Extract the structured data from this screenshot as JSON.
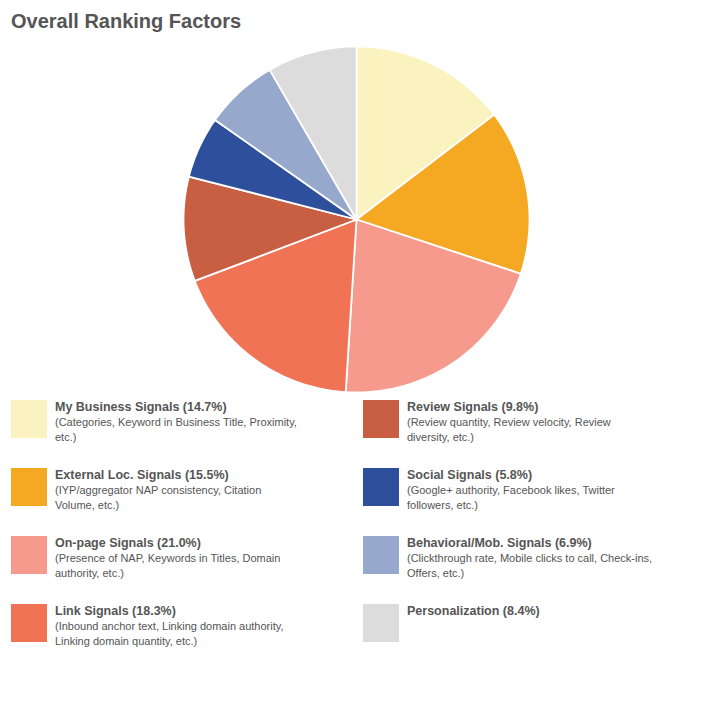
{
  "chart_data": {
    "type": "pie",
    "title": "Overall Ranking Factors",
    "categories": [
      "My Business Signals (14.7%)",
      "External Loc. Signals (15.5%)",
      "On-page Signals (21.0%)",
      "Link Signals (18.3%)",
      "Review Signals (9.8%)",
      "Social Signals (5.8%)",
      "Behavioral/Mob. Signals (6.9%)",
      "Personalization (8.4%)"
    ],
    "values": [
      14.7,
      15.5,
      21.0,
      18.3,
      9.8,
      5.8,
      6.9,
      8.4
    ],
    "colors": [
      "#FAF3C0",
      "#F5A923",
      "#F79A8E",
      "#F07355",
      "#C95F42",
      "#2E4F9B",
      "#96A8CC",
      "#DCDCDC"
    ],
    "descriptions": [
      [
        "(Categories, Keyword in Business Title, Proximity,",
        "etc.)"
      ],
      [
        "(IYP/aggregator NAP consistency, Citation",
        "Volume, etc.)"
      ],
      [
        "(Presence of NAP, Keywords in Titles, Domain",
        "authority, etc.)"
      ],
      [
        "(Inbound anchor text, Linking domain authority,",
        "Linking domain quantity, etc.)"
      ],
      [
        "(Review quantity, Review velocity, Review",
        "diversity, etc.)"
      ],
      [
        "(Google+ authority, Facebook likes, Twitter",
        "followers, etc.)"
      ],
      [
        "(Clickthrough rate, Mobile clicks to call, Check-ins,",
        "Offers, etc.)"
      ],
      []
    ],
    "legend": "bottom"
  }
}
